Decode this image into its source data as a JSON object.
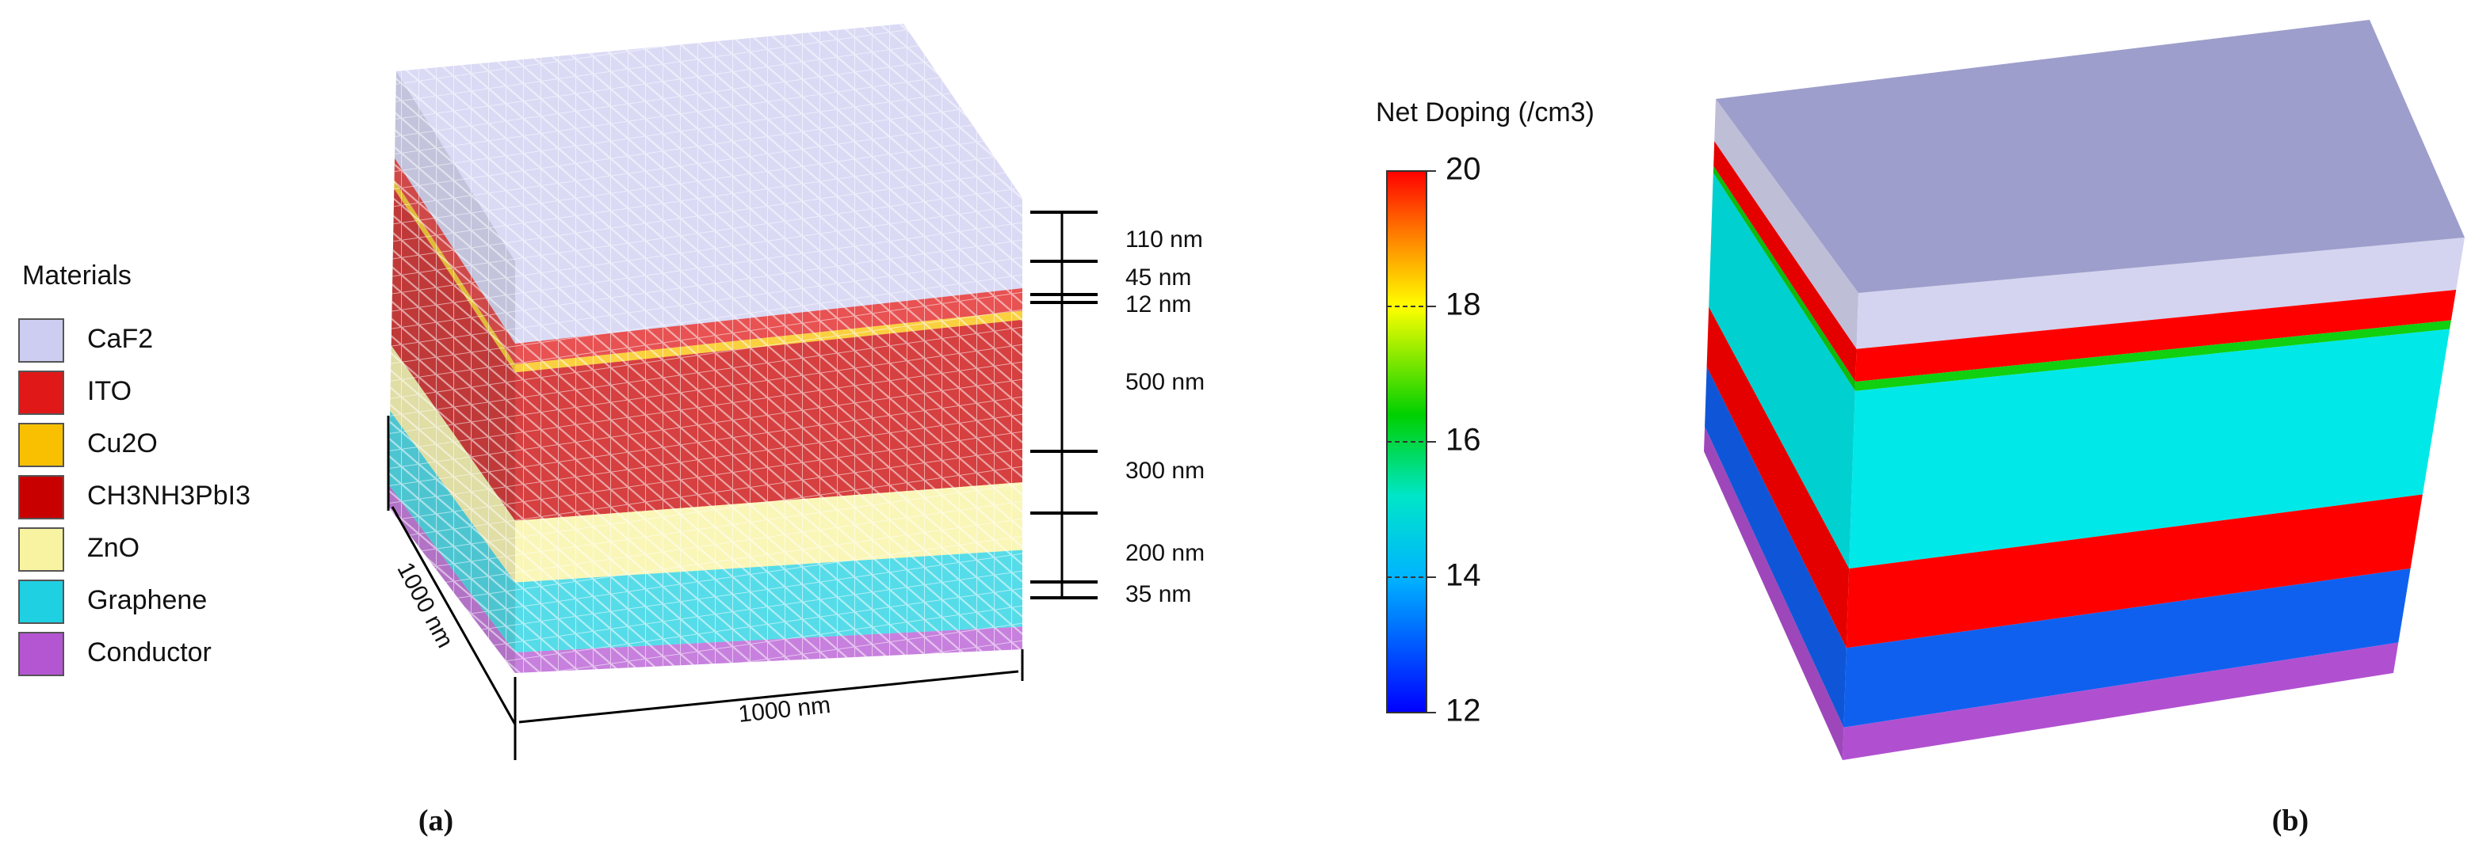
{
  "legend": {
    "title": "Materials",
    "items": [
      {
        "label": "CaF2",
        "color": "#cdcdf2"
      },
      {
        "label": "ITO",
        "color": "#e01818"
      },
      {
        "label": "Cu2O",
        "color": "#f8c000"
      },
      {
        "label": "CH3NH3PbI3",
        "color": "#c80000"
      },
      {
        "label": "ZnO",
        "color": "#f8f3a0"
      },
      {
        "label": "Graphene",
        "color": "#1ed0e2"
      },
      {
        "label": "Conductor",
        "color": "#b455d2"
      }
    ]
  },
  "dimensions": {
    "vertical": [
      "110 nm",
      "45 nm",
      "12 nm",
      "500 nm",
      "300 nm",
      "200 nm",
      "35 nm"
    ],
    "depth": "1000 nm",
    "width": "1000 nm"
  },
  "colorbar": {
    "title": "Net Doping (/cm3)",
    "lim": [
      12,
      20
    ],
    "ticks": [
      12,
      14,
      16,
      18,
      20
    ]
  },
  "panels": {
    "a": {
      "label": "(a)"
    },
    "b": {
      "label": "(b)"
    }
  }
}
